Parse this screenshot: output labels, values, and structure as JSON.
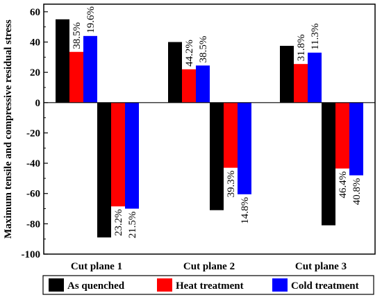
{
  "chart_data": {
    "type": "bar",
    "title": "",
    "xlabel": "",
    "ylabel": "Maximum tensile and compressive residual stress",
    "ylim": [
      -100,
      65
    ],
    "yticks": [
      -100,
      -80,
      -60,
      -40,
      -20,
      0,
      20,
      40,
      60
    ],
    "categories": [
      "Cut plane 1",
      "Cut plane 2",
      "Cut plane 3"
    ],
    "series": [
      {
        "name": "As quenched",
        "color": "#000000",
        "tensile": [
          55,
          40,
          37.5
        ],
        "compressive": [
          -89,
          -71,
          -81
        ],
        "tensile_labels": [
          "",
          "",
          ""
        ],
        "compressive_labels": [
          "",
          "",
          ""
        ]
      },
      {
        "name": "Heat treatment",
        "color": "#ff0000",
        "tensile": [
          33.5,
          22,
          25.5
        ],
        "compressive": [
          -68.5,
          -43,
          -43.5
        ],
        "tensile_labels": [
          "38.5%",
          "44.2%",
          "31.8%"
        ],
        "compressive_labels": [
          "23.2%",
          "39.3%",
          "46.4%"
        ]
      },
      {
        "name": "Cold treatment",
        "color": "#0000ff",
        "tensile": [
          44,
          24.5,
          33
        ],
        "compressive": [
          -70,
          -60.5,
          -48
        ],
        "tensile_labels": [
          "19.6%",
          "38.5%",
          "11.3%"
        ],
        "compressive_labels": [
          "21.5%",
          "14.8%",
          "40.8%"
        ]
      }
    ],
    "grid": false,
    "legend": "bottom"
  }
}
